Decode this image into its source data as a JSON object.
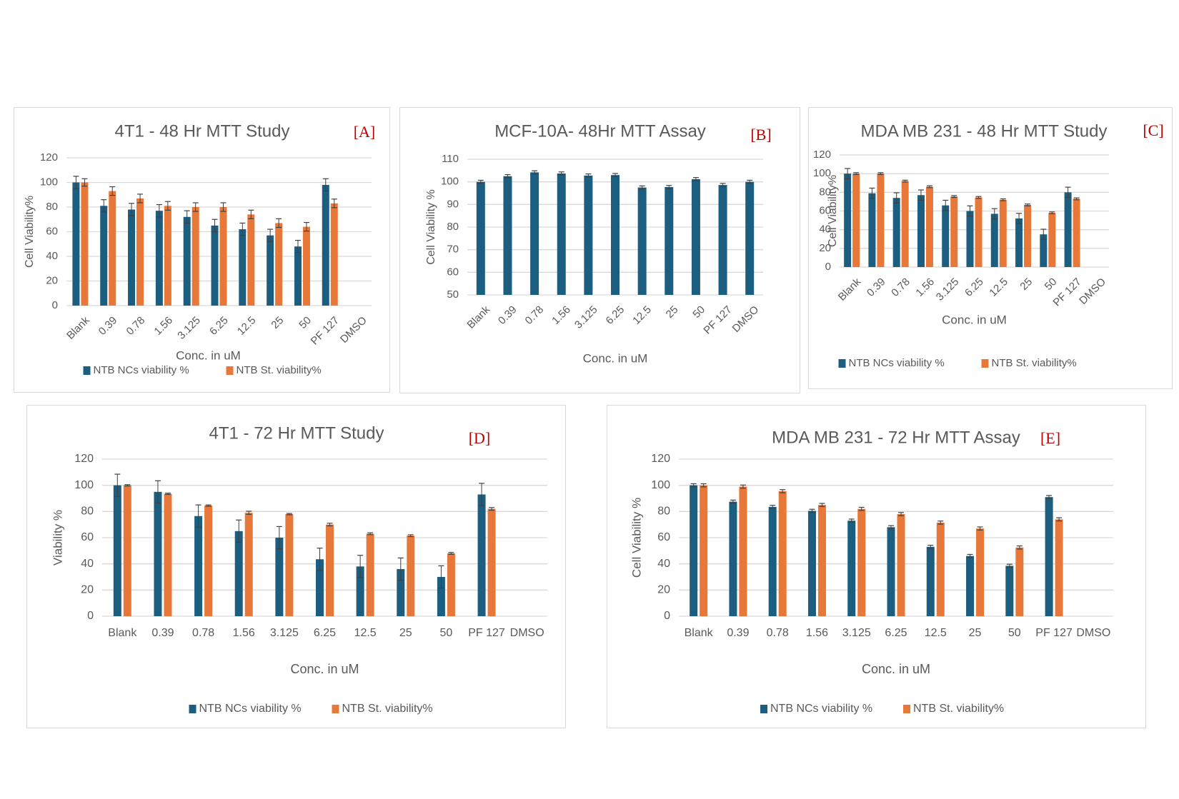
{
  "colors": {
    "series_nc": "#1b5e80",
    "series_st": "#e8773a",
    "grid": "#d9d9d9",
    "text": "#595959",
    "panel_label": "#c00000",
    "error_bar": "#404040"
  },
  "legend": {
    "nc": "NTB NCs viability %",
    "st": "NTB St. viability%"
  },
  "chart_data": [
    {
      "id": "A",
      "type": "bar",
      "title": "4T1  - 48 Hr MTT Study",
      "panel_label": "[A]",
      "xlabel": "Conc. in uM",
      "ylabel": "Cell Viability%",
      "ylim": [
        0,
        120
      ],
      "yticks": [
        0,
        20,
        40,
        60,
        80,
        100,
        120
      ],
      "grid": true,
      "legend_position": "bottom",
      "x_tick_rotation": "45",
      "categories": [
        "Blank",
        "0.39",
        "0.78",
        "1.56",
        "3.125",
        "6.25",
        "12.5",
        "25",
        "50",
        "PF 127",
        "DMSO"
      ],
      "series": [
        {
          "name": "NTB NCs viability %",
          "values": [
            100,
            81,
            78,
            77,
            72,
            65,
            62,
            57,
            48,
            98,
            null
          ],
          "errors": [
            5,
            5,
            5,
            5,
            5,
            5,
            5,
            5,
            5,
            5,
            null
          ]
        },
        {
          "name": "NTB St. viability%",
          "values": [
            100,
            93,
            87,
            81,
            80,
            80,
            74,
            67,
            64,
            83,
            null
          ],
          "errors": [
            3,
            3.5,
            3.5,
            3.5,
            3.5,
            3.5,
            3.5,
            3.5,
            3.5,
            3.5,
            null
          ]
        }
      ]
    },
    {
      "id": "B",
      "type": "bar",
      "title": "MCF-10A- 48Hr MTT Assay",
      "panel_label": "[B]",
      "xlabel": "Conc. in uM",
      "ylabel": "Cell Viability %",
      "ylim": [
        50,
        110
      ],
      "yticks": [
        50,
        60,
        70,
        80,
        90,
        100,
        110
      ],
      "grid": true,
      "legend_position": "none",
      "x_tick_rotation": "45",
      "categories": [
        "Blank",
        "0.39",
        "0.78",
        "1.56",
        "3.125",
        "6.25",
        "12.5",
        "25",
        "50",
        "PF 127",
        "DMSO"
      ],
      "series": [
        {
          "name": "Cell Viability %",
          "values": [
            100,
            102.5,
            104.2,
            103.7,
            102.8,
            103,
            97.5,
            97.7,
            101.2,
            98.6,
            100
          ],
          "errors": [
            0.7,
            0.7,
            0.7,
            0.7,
            0.7,
            0.7,
            0.7,
            0.7,
            0.7,
            0.7,
            0.7
          ]
        }
      ]
    },
    {
      "id": "C",
      "type": "bar",
      "title": "MDA MB 231  - 48 Hr MTT Study",
      "panel_label": "[C]",
      "xlabel": "Conc. in uM",
      "ylabel": "Cell Viability%",
      "ylim": [
        0,
        120
      ],
      "yticks": [
        0,
        20,
        40,
        60,
        80,
        100,
        120
      ],
      "grid": true,
      "legend_position": "bottom",
      "x_tick_rotation": "45",
      "categories": [
        "Blank",
        "0.39",
        "0.78",
        "1.56",
        "3.125",
        "6.25",
        "12.5",
        "25",
        "50",
        "PF 127",
        "DMSO"
      ],
      "series": [
        {
          "name": "NTB NCs viability %",
          "values": [
            100,
            79,
            74,
            77,
            66,
            60,
            57,
            52,
            35,
            80,
            null
          ],
          "errors": [
            5.5,
            5.5,
            5.5,
            5.5,
            5.5,
            5.5,
            5.5,
            5.5,
            5.5,
            5.5,
            null
          ]
        },
        {
          "name": "NTB St. viability%",
          "values": [
            100,
            100,
            92,
            86,
            75.5,
            74.5,
            72,
            66.5,
            58,
            73,
            null
          ],
          "errors": [
            1,
            1,
            1,
            1,
            1,
            1,
            1,
            1,
            1,
            1,
            null
          ]
        }
      ]
    },
    {
      "id": "D",
      "type": "bar",
      "title": "4T1  - 72 Hr MTT Study",
      "panel_label": "[D]",
      "xlabel": "Conc. in uM",
      "ylabel": "Viability %",
      "ylim": [
        0,
        120
      ],
      "yticks": [
        0,
        20,
        40,
        60,
        80,
        100,
        120
      ],
      "grid": true,
      "legend_position": "bottom",
      "x_tick_rotation": "0",
      "categories": [
        "Blank",
        "0.39",
        "0.78",
        "1.56",
        "3.125",
        "6.25",
        "12.5",
        "25",
        "50",
        "PF 127",
        "DMSO"
      ],
      "series": [
        {
          "name": "NTB NCs viability %",
          "values": [
            100,
            95,
            76.5,
            65,
            60,
            43.5,
            38,
            36,
            30,
            93,
            null
          ],
          "errors": [
            8.5,
            8.5,
            8.5,
            8.5,
            8.5,
            8.5,
            8.5,
            8.5,
            8.5,
            8.5,
            null
          ]
        },
        {
          "name": "NTB St. viability%",
          "values": [
            100,
            93.5,
            84.5,
            79,
            78,
            70,
            63,
            61.5,
            48,
            82,
            null
          ],
          "errors": [
            0.5,
            0.5,
            0.5,
            1.2,
            0.5,
            1,
            0.7,
            0.7,
            0.7,
            1,
            null
          ]
        }
      ]
    },
    {
      "id": "E",
      "type": "bar",
      "title": "MDA MB 231 - 72 Hr MTT Assay",
      "panel_label": "[E]",
      "xlabel": "Conc. in uM",
      "ylabel": "Cell Viability %",
      "ylim": [
        0,
        120
      ],
      "yticks": [
        0,
        20,
        40,
        60,
        80,
        100,
        120
      ],
      "grid": true,
      "legend_position": "bottom",
      "x_tick_rotation": "0",
      "categories": [
        "Blank",
        "0.39",
        "0.78",
        "1.56",
        "3.125",
        "6.25",
        "12.5",
        "25",
        "50",
        "PF 127",
        "DMSO"
      ],
      "series": [
        {
          "name": "NTB NCs viability %",
          "values": [
            100,
            87.5,
            83.5,
            80.5,
            73,
            68,
            53,
            46,
            38.5,
            91,
            null
          ],
          "errors": [
            1.2,
            1.2,
            1.2,
            1.2,
            1.2,
            1.2,
            1.2,
            1.2,
            1.2,
            1.2,
            null
          ]
        },
        {
          "name": "NTB St. viability%",
          "values": [
            100,
            99,
            95.5,
            85,
            82,
            78,
            71.5,
            67,
            52.5,
            74,
            null
          ],
          "errors": [
            1.2,
            1.2,
            1.2,
            1.2,
            1.2,
            1.2,
            1.2,
            1.2,
            1.2,
            1.2,
            null
          ]
        }
      ]
    }
  ]
}
